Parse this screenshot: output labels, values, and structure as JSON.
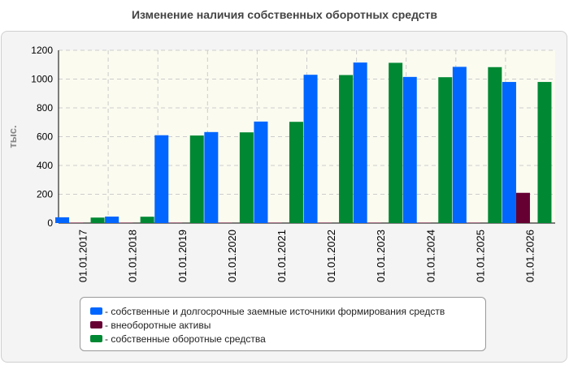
{
  "chart_data": {
    "type": "bar",
    "title": "Изменение наличия собственных оборотных средств",
    "ylabel": "тыс.",
    "xlabel": "",
    "ylim": [
      0,
      1200
    ],
    "yticks": [
      0,
      200,
      400,
      600,
      800,
      1000,
      1200
    ],
    "grid": true,
    "legend_position": "bottom",
    "categories": [
      "01.01.2017",
      "01.01.2018",
      "01.01.2019",
      "01.01.2020",
      "01.01.2021",
      "01.01.2022",
      "01.01.2023",
      "01.01.2024",
      "01.01.2025",
      "01.01.2026"
    ],
    "series": [
      {
        "name": "собственные и долгосрочные заемные источники формирования средств",
        "color": "#0066ff",
        "values": [
          40,
          45,
          610,
          632,
          705,
          1030,
          1115,
          1015,
          1085,
          980
        ]
      },
      {
        "name": "внеоборотные активы",
        "color": "#660033",
        "values": [
          3,
          3,
          3,
          3,
          3,
          3,
          3,
          3,
          3,
          210
        ]
      },
      {
        "name": "собственные оборотные средства",
        "color": "#008833",
        "values": [
          38,
          44,
          608,
          630,
          703,
          1028,
          1113,
          1013,
          1083,
          980
        ]
      }
    ]
  }
}
